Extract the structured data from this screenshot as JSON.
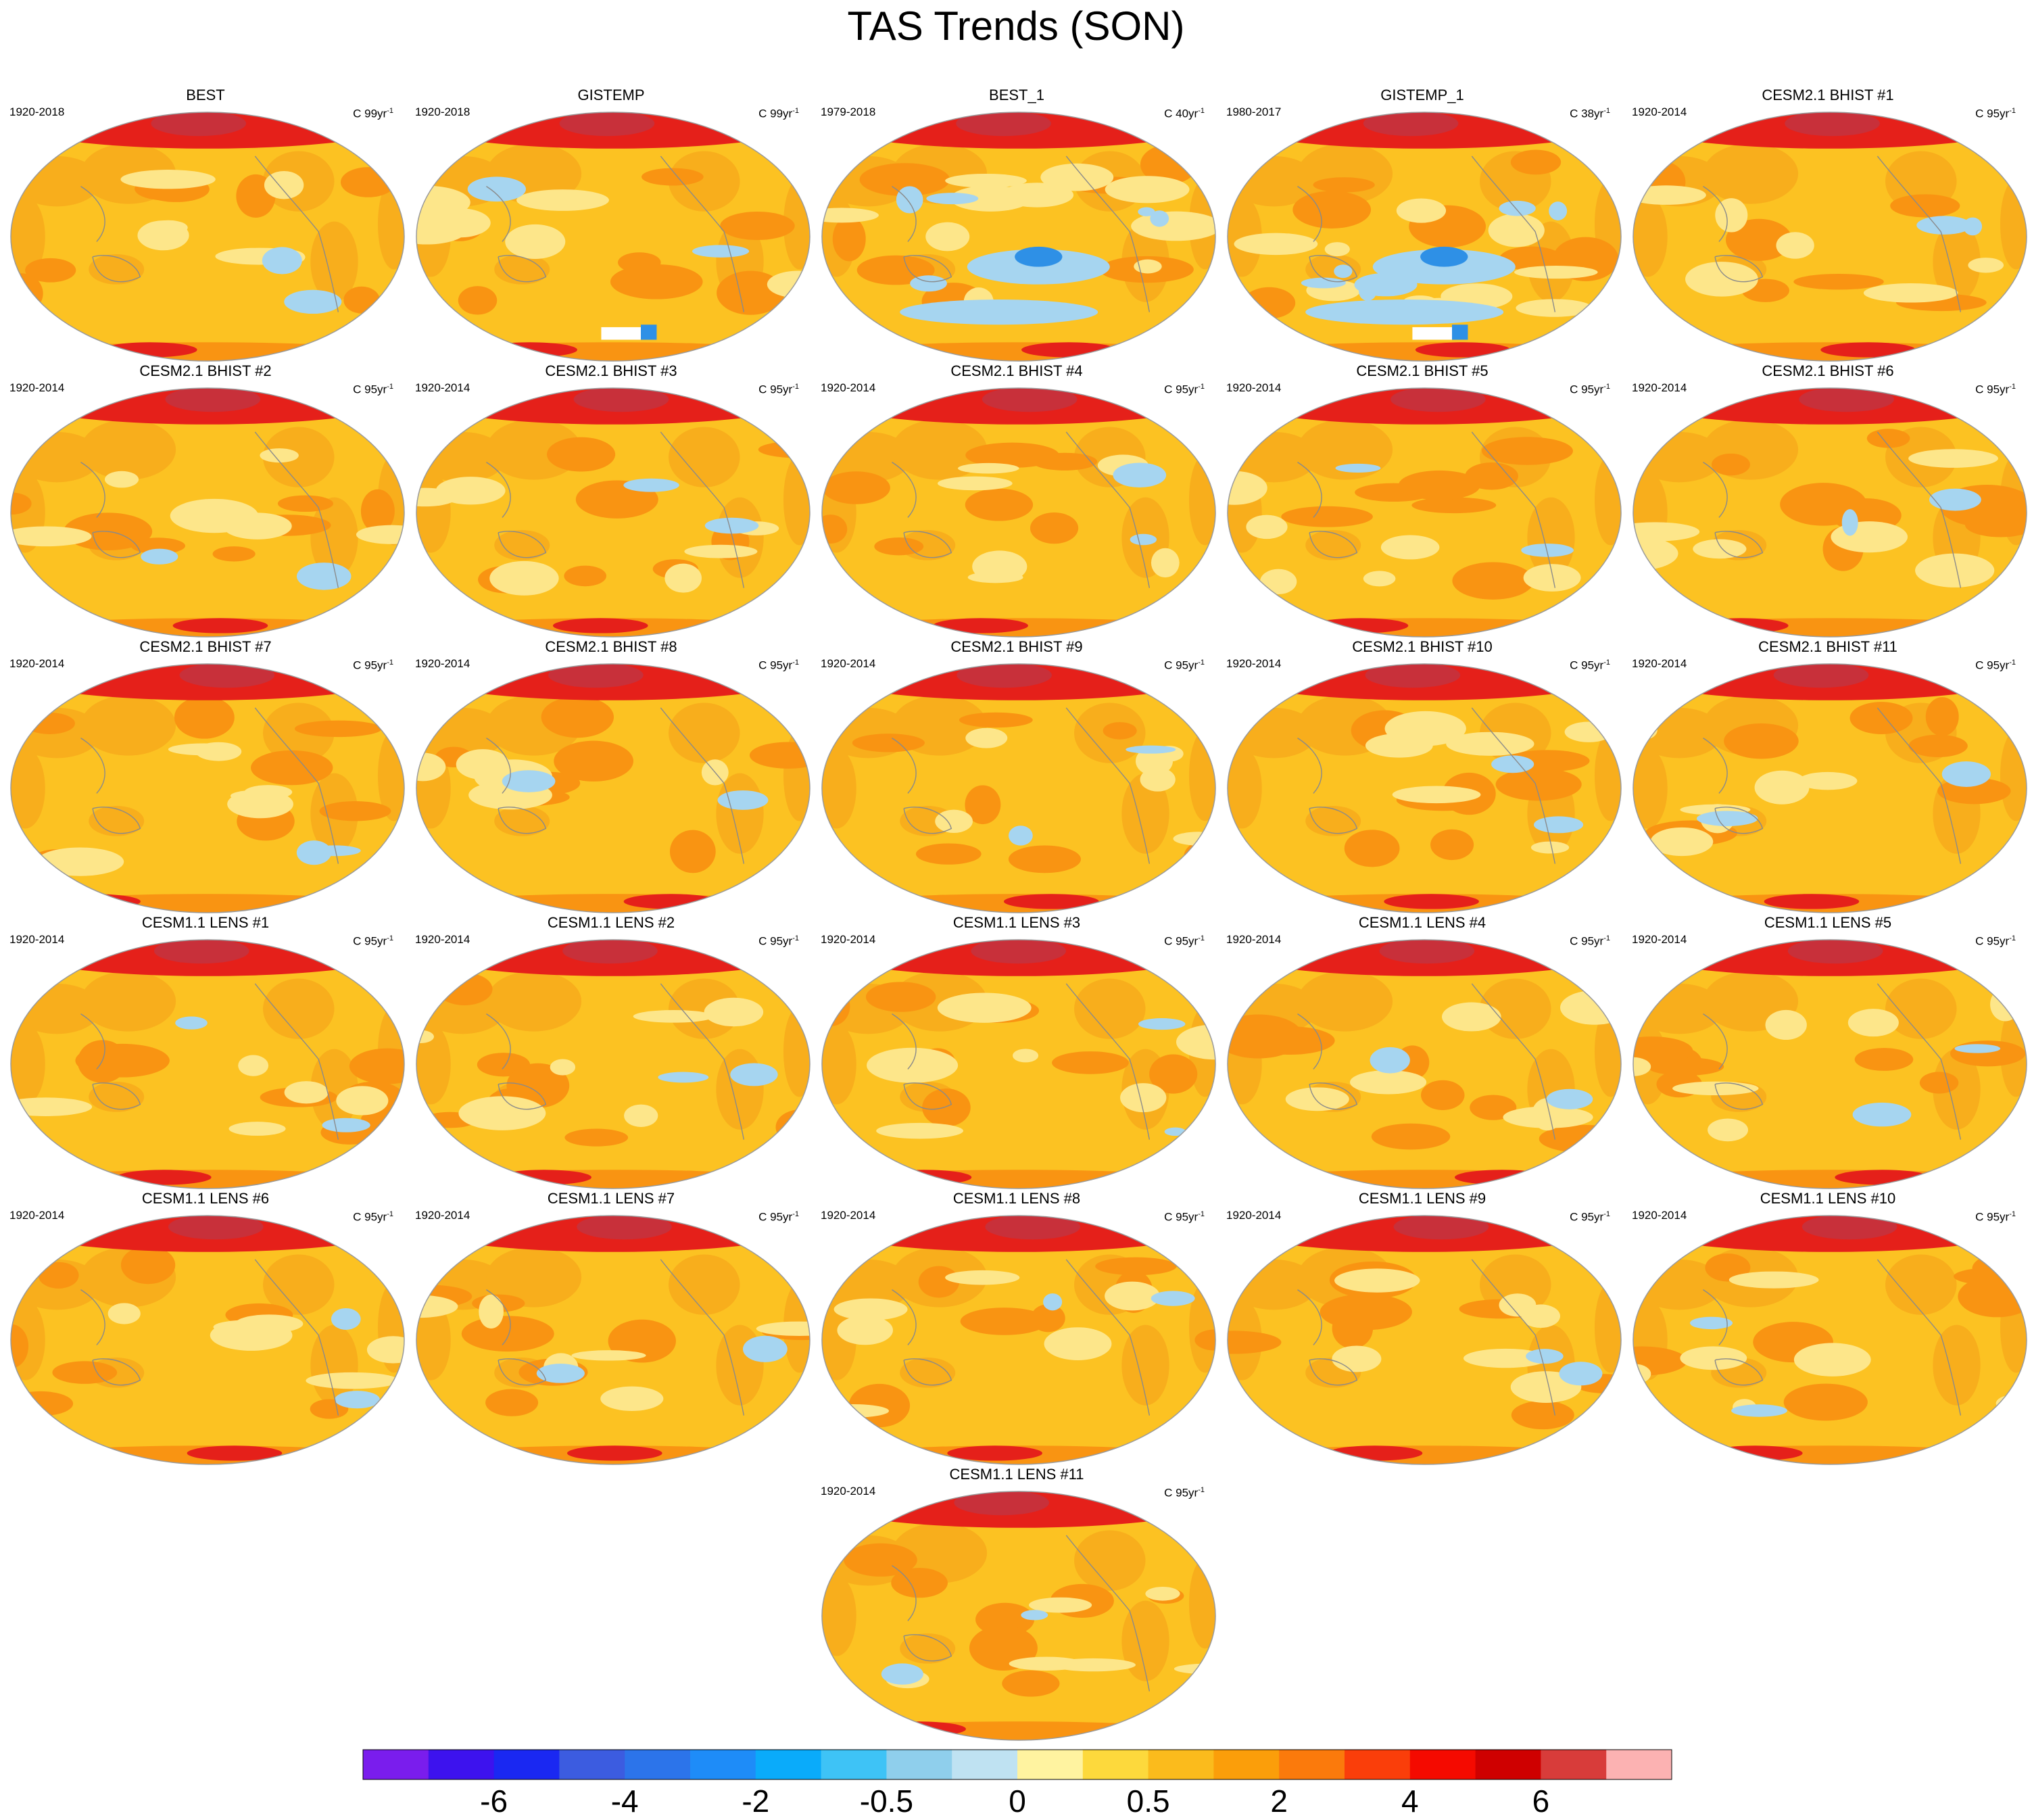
{
  "title": "TAS Trends (SON)",
  "chart_data": {
    "type": "filled-contour-map-grid",
    "title": "TAS Trends (SON)",
    "variable": "TAS",
    "season": "SON",
    "units_label": "C",
    "panels": [
      {
        "name": "BEST",
        "period": "1920-2018",
        "units": "C 99yr",
        "exp": "-1"
      },
      {
        "name": "GISTEMP",
        "period": "1920-2018",
        "units": "C 99yr",
        "exp": "-1"
      },
      {
        "name": "BEST_1",
        "period": "1979-2018",
        "units": "C 40yr",
        "exp": "-1"
      },
      {
        "name": "GISTEMP_1",
        "period": "1980-2017",
        "units": "C 38yr",
        "exp": "-1"
      },
      {
        "name": "CESM2.1 BHIST #1",
        "period": "1920-2014",
        "units": "C 95yr",
        "exp": "-1"
      },
      {
        "name": "CESM2.1 BHIST #2",
        "period": "1920-2014",
        "units": "C 95yr",
        "exp": "-1"
      },
      {
        "name": "CESM2.1 BHIST #3",
        "period": "1920-2014",
        "units": "C 95yr",
        "exp": "-1"
      },
      {
        "name": "CESM2.1 BHIST #4",
        "period": "1920-2014",
        "units": "C 95yr",
        "exp": "-1"
      },
      {
        "name": "CESM2.1 BHIST #5",
        "period": "1920-2014",
        "units": "C 95yr",
        "exp": "-1"
      },
      {
        "name": "CESM2.1 BHIST #6",
        "period": "1920-2014",
        "units": "C 95yr",
        "exp": "-1"
      },
      {
        "name": "CESM2.1 BHIST #7",
        "period": "1920-2014",
        "units": "C 95yr",
        "exp": "-1"
      },
      {
        "name": "CESM2.1 BHIST #8",
        "period": "1920-2014",
        "units": "C 95yr",
        "exp": "-1"
      },
      {
        "name": "CESM2.1 BHIST #9",
        "period": "1920-2014",
        "units": "C 95yr",
        "exp": "-1"
      },
      {
        "name": "CESM2.1 BHIST #10",
        "period": "1920-2014",
        "units": "C 95yr",
        "exp": "-1"
      },
      {
        "name": "CESM2.1 BHIST #11",
        "period": "1920-2014",
        "units": "C 95yr",
        "exp": "-1"
      },
      {
        "name": "CESM1.1 LENS #1",
        "period": "1920-2014",
        "units": "C 95yr",
        "exp": "-1"
      },
      {
        "name": "CESM1.1 LENS #2",
        "period": "1920-2014",
        "units": "C 95yr",
        "exp": "-1"
      },
      {
        "name": "CESM1.1 LENS #3",
        "period": "1920-2014",
        "units": "C 95yr",
        "exp": "-1"
      },
      {
        "name": "CESM1.1 LENS #4",
        "period": "1920-2014",
        "units": "C 95yr",
        "exp": "-1"
      },
      {
        "name": "CESM1.1 LENS #5",
        "period": "1920-2014",
        "units": "C 95yr",
        "exp": "-1"
      },
      {
        "name": "CESM1.1 LENS #6",
        "period": "1920-2014",
        "units": "C 95yr",
        "exp": "-1"
      },
      {
        "name": "CESM1.1 LENS #7",
        "period": "1920-2014",
        "units": "C 95yr",
        "exp": "-1"
      },
      {
        "name": "CESM1.1 LENS #8",
        "period": "1920-2014",
        "units": "C 95yr",
        "exp": "-1"
      },
      {
        "name": "CESM1.1 LENS #9",
        "period": "1920-2014",
        "units": "C 95yr",
        "exp": "-1"
      },
      {
        "name": "CESM1.1 LENS #10",
        "period": "1920-2014",
        "units": "C 95yr",
        "exp": "-1"
      },
      {
        "name": "CESM1.1 LENS #11",
        "period": "1920-2014",
        "units": "C 95yr",
        "exp": "-1"
      }
    ],
    "colorbar": {
      "colors": [
        "#7a1ded",
        "#3d12ee",
        "#1a28f2",
        "#3c5ce0",
        "#2c74ea",
        "#1e8cf8",
        "#0aabfa",
        "#3ec3f6",
        "#8fcfec",
        "#bfe2f2",
        "#fff3a0",
        "#fdd93c",
        "#fbbb1c",
        "#fb9e0a",
        "#fb7a0c",
        "#fa3e0a",
        "#f50a00",
        "#cf0000",
        "#d83c3a",
        "#fcb2b2"
      ],
      "tick_labels": [
        "-6",
        "-4",
        "-2",
        "-0.5",
        "0",
        "0.5",
        "2",
        "4",
        "6"
      ],
      "tick_boundary_index": [
        2,
        4,
        6,
        8,
        10,
        12,
        14,
        16,
        18
      ]
    },
    "map_palette": {
      "ocean": "#fcc222",
      "land": "#f8ae1c",
      "arctic": "#e5201a",
      "arctic_core": "#c8303a",
      "warm": "#f99412",
      "light": "#fde68a",
      "cool": "#a6d5f0",
      "blue": "#2e90e6",
      "coast": "#8a8a8a"
    }
  }
}
